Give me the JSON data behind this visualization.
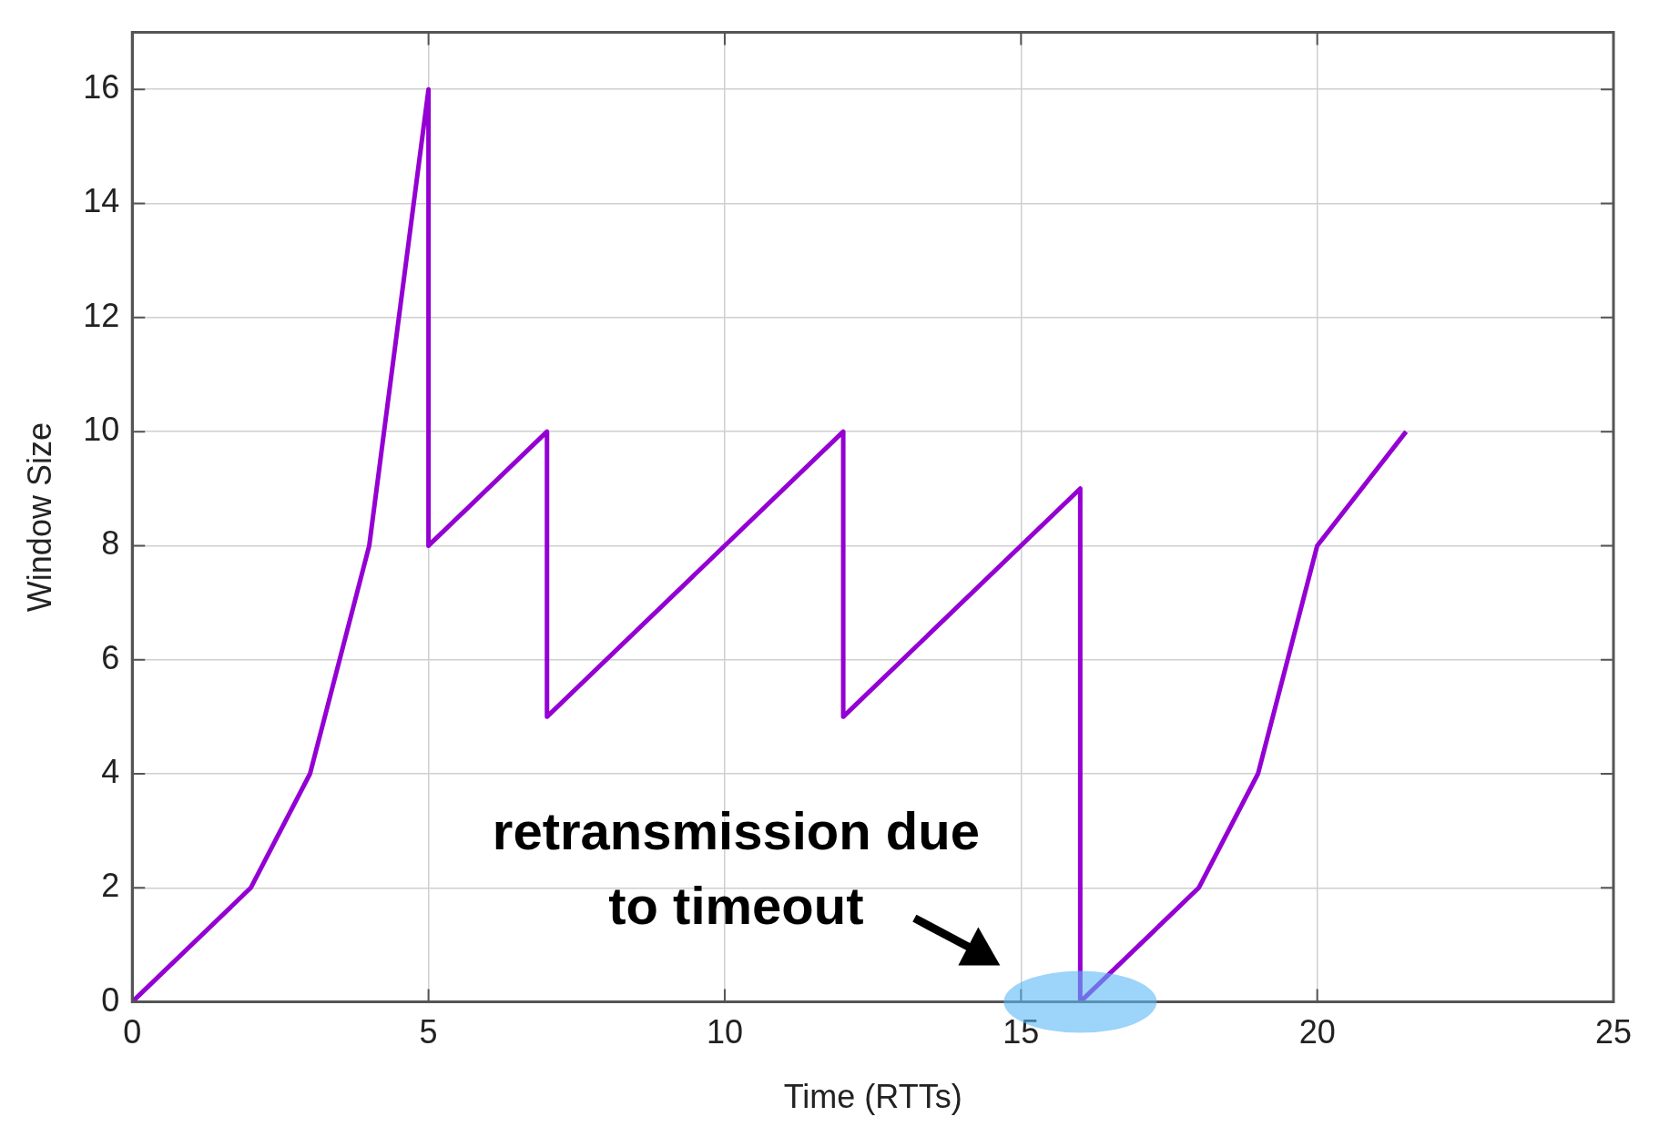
{
  "chart_data": {
    "type": "line",
    "xlabel": "Time (RTTs)",
    "ylabel": "Window Size",
    "x": [
      0,
      2,
      3,
      4,
      5,
      5,
      7,
      7,
      12,
      12,
      16,
      16,
      18,
      19,
      20,
      21.5
    ],
    "series": [
      {
        "color": "#9400d3",
        "values": [
          0,
          2,
          4,
          8,
          16,
          8,
          10,
          5,
          10,
          5,
          9,
          0,
          2,
          4,
          8,
          10
        ]
      }
    ],
    "xlim": [
      0,
      25
    ],
    "xticks": [
      0,
      5,
      10,
      15,
      20,
      25
    ],
    "ylim": [
      0,
      17
    ],
    "yticks": [
      0,
      2,
      4,
      6,
      8,
      10,
      12,
      14,
      16
    ],
    "grid": true,
    "legend": false,
    "marker": "none",
    "line_style": "solid",
    "annotations": [
      {
        "text": "retransmission due\nto timeout",
        "x": 16,
        "y": 0
      }
    ]
  }
}
